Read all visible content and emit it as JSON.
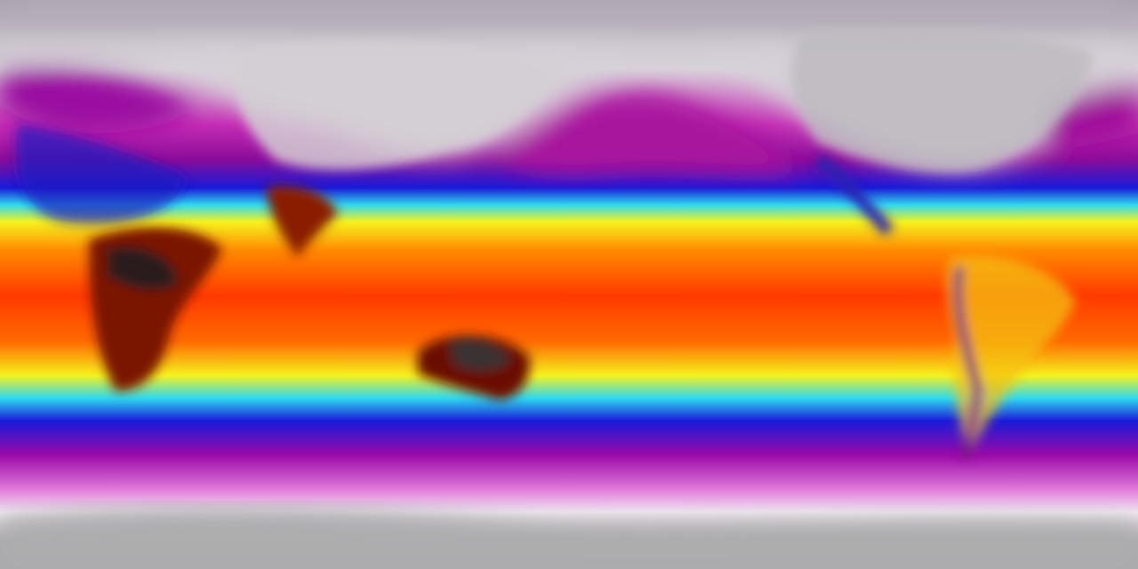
{
  "map": {
    "colormap_stops": [
      {
        "lat_band": "north-pole",
        "color": "#a9a2ad"
      },
      {
        "lat_band": "arctic",
        "color": "#d9d3da"
      },
      {
        "lat_band": "north-high",
        "color": "#c42cb4"
      },
      {
        "lat_band": "north-mid",
        "color": "#8a0c9a"
      },
      {
        "lat_band": "north-cold",
        "color": "#1a1ad8"
      },
      {
        "lat_band": "north-cool",
        "color": "#2fd9f0"
      },
      {
        "lat_band": "north-warm",
        "color": "#f6f21e"
      },
      {
        "lat_band": "north-tropic",
        "color": "#ff8a00"
      },
      {
        "lat_band": "equator",
        "color": "#ff3a00"
      },
      {
        "lat_band": "south-tropic",
        "color": "#ff6a00"
      },
      {
        "lat_band": "south-warm",
        "color": "#f6f21e"
      },
      {
        "lat_band": "south-cool",
        "color": "#2fd9f0"
      },
      {
        "lat_band": "south-cold",
        "color": "#1a1ad8"
      },
      {
        "lat_band": "south-mid",
        "color": "#9a0aa8"
      },
      {
        "lat_band": "south-high",
        "color": "#e07ad8"
      },
      {
        "lat_band": "antarctic",
        "color": "#f2e8f2"
      },
      {
        "lat_band": "south-pole",
        "color": "#a9a9ab"
      }
    ],
    "land_colors": {
      "hot_land": "#5a0a00",
      "desert_core": "#3a3030",
      "cold_land": "#cfcfd2"
    }
  }
}
